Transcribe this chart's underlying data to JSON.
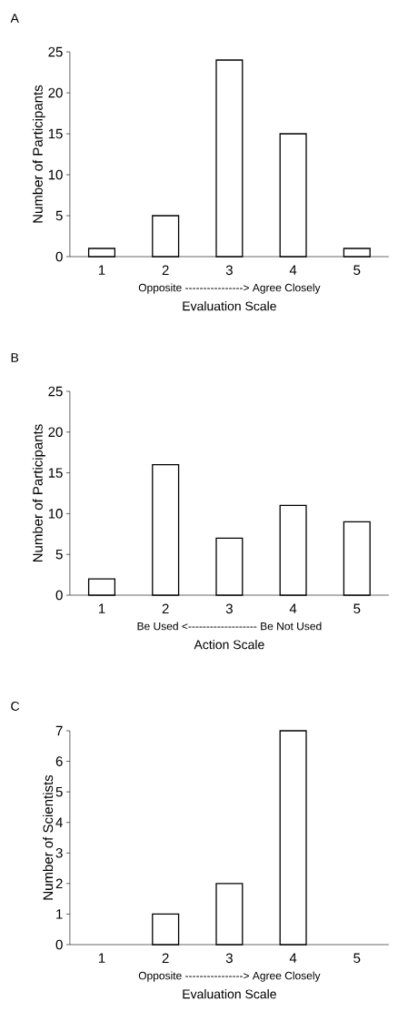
{
  "chart_data": [
    {
      "type": "bar",
      "title": "A",
      "categories": [
        "1",
        "2",
        "3",
        "4",
        "5"
      ],
      "values": [
        1,
        5,
        24,
        15,
        1
      ],
      "color": "#ffffff",
      "ylim": [
        0,
        25
      ],
      "yticks": [
        0,
        5,
        10,
        15,
        20,
        25
      ],
      "ylabel": "Number of Participants",
      "xlabel": "Evaluation Scale",
      "annotations": [
        "Opposite ----------------> Agree Closely"
      ]
    },
    {
      "type": "bar",
      "title": "B",
      "categories": [
        "1",
        "2",
        "3",
        "4",
        "5"
      ],
      "values": [
        2,
        16,
        7,
        11,
        9
      ],
      "color": "#ffffff",
      "ylim": [
        0,
        25
      ],
      "yticks": [
        0,
        5,
        10,
        15,
        20,
        25
      ],
      "ylabel": "Number of Participants",
      "xlabel": "Action Scale",
      "annotations": [
        "Be Used <------------------- Be Not Used"
      ]
    },
    {
      "type": "bar",
      "title": "C",
      "categories": [
        "1",
        "2",
        "3",
        "4",
        "5"
      ],
      "values": [
        null,
        1,
        2,
        7,
        null
      ],
      "color": "#ffffff",
      "ylim": [
        0,
        7
      ],
      "yticks": [
        0,
        1,
        2,
        3,
        4,
        5,
        6,
        7
      ],
      "ylabel": "Number of Scientists",
      "xlabel": "Evaluation Scale",
      "annotations": [
        "Opposite ----------------> Agree Closely"
      ]
    }
  ]
}
